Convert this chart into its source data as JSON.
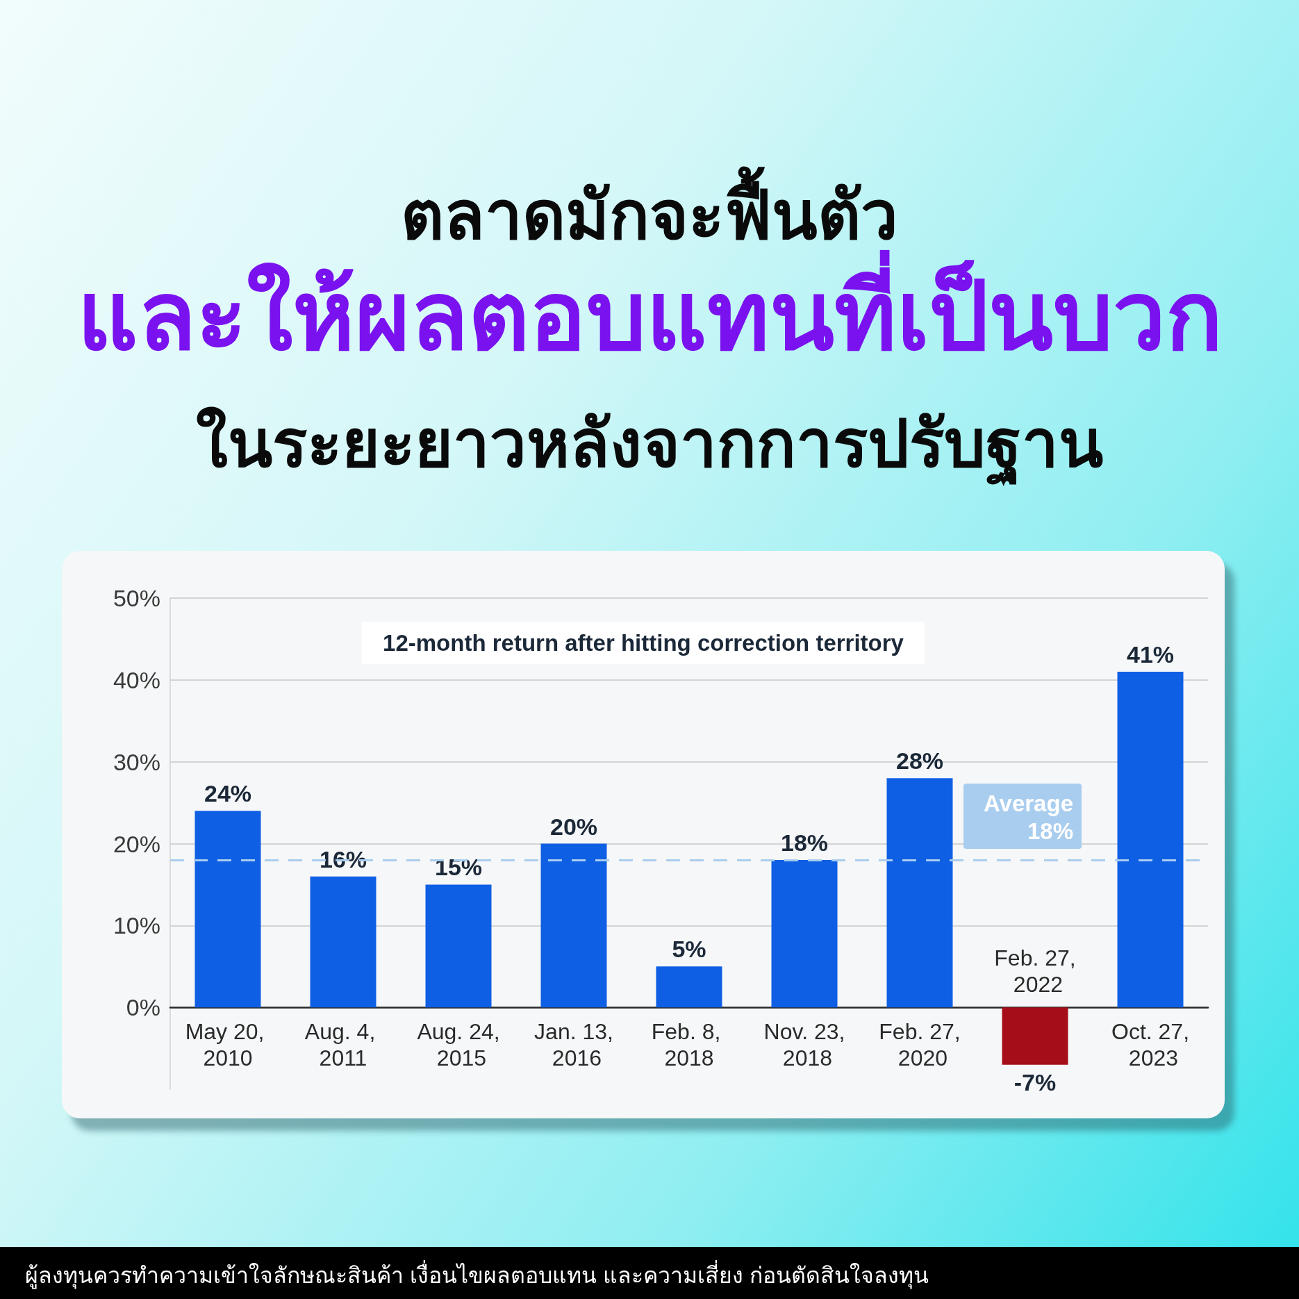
{
  "chart_data": {
    "type": "bar",
    "title": "ตลาดมักจะฟื้นตัว\nและให้ผลตอบแทนที่เป็นบวก\nในระยะยาวหลังจากการปรับฐาน",
    "subtitle": "12-month return after hitting correction territory",
    "annotations": [
      "ผู้ลงทุนควรทำความเข้าใจลักษณะสินค้า เงื่อนไขผลตอบแทน และความเสี่ยง ก่อนตัดสินใจลงทุน"
    ],
    "categories": [
      "May 20, 2010",
      "Aug. 4, 2011",
      "Aug. 24, 2015",
      "Jan. 13, 2016",
      "Feb. 8, 2018",
      "Nov. 23, 2018",
      "Feb. 27, 2020",
      "Feb. 27, 2022",
      "Oct. 27, 2023"
    ],
    "values": [
      24,
      16,
      15,
      20,
      5,
      18,
      28,
      -7,
      41
    ],
    "colors": [
      "#0f5fe4",
      "#0f5fe4",
      "#0f5fe4",
      "#0f5fe4",
      "#0f5fe4",
      "#0f5fe4",
      "#0f5fe4",
      "#a50d18",
      "#0f5fe4"
    ],
    "value_labels": [
      "24%",
      "16%",
      "15%",
      "20%",
      "5%",
      "18%",
      "28%",
      "-7%",
      "41%"
    ],
    "ylim": [
      -10,
      50
    ],
    "yticks": [
      {
        "value": 0,
        "label": "0%"
      },
      {
        "value": 10,
        "label": "10%"
      },
      {
        "value": 20,
        "label": "20%"
      },
      {
        "value": 30,
        "label": "30%"
      },
      {
        "value": 40,
        "label": "40%"
      },
      {
        "value": 50,
        "label": "50%"
      }
    ],
    "grid": "y",
    "ref_lines": [
      {
        "axis": "y",
        "value": 18,
        "label": "Average 18%",
        "color": "#a9cdee",
        "line_style": "dashed"
      }
    ]
  }
}
